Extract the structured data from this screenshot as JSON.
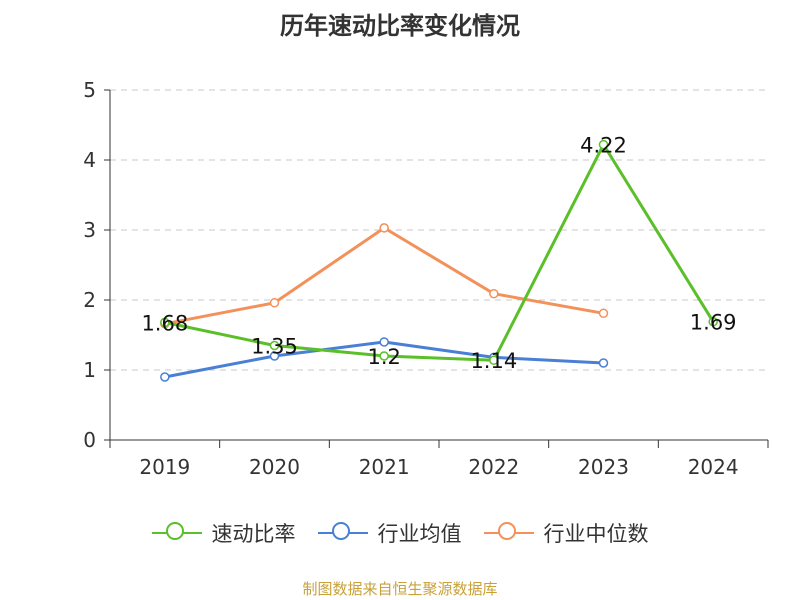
{
  "title": "历年速动比率变化情况",
  "source": "制图数据来自恒生聚源数据库",
  "chart_data": {
    "type": "line",
    "categories": [
      "2019",
      "2020",
      "2021",
      "2022",
      "2023",
      "2024"
    ],
    "ylim": [
      0,
      5
    ],
    "yticks": [
      0,
      1,
      2,
      3,
      4,
      5
    ],
    "grid": true,
    "legend_position": "bottom",
    "series": [
      {
        "name": "速动比率",
        "color": "#5bbf2a",
        "values": [
          1.68,
          1.35,
          1.2,
          1.14,
          4.22,
          1.69
        ],
        "labels": [
          "1.68",
          "1.35",
          "1.2",
          "1.14",
          "4.22",
          "1.69"
        ]
      },
      {
        "name": "行业均值",
        "color": "#4a7fd6",
        "values": [
          0.9,
          1.2,
          1.4,
          1.18,
          1.1,
          null
        ]
      },
      {
        "name": "行业中位数",
        "color": "#f4905a",
        "values": [
          1.66,
          1.96,
          3.03,
          2.09,
          1.81,
          null
        ]
      }
    ]
  }
}
